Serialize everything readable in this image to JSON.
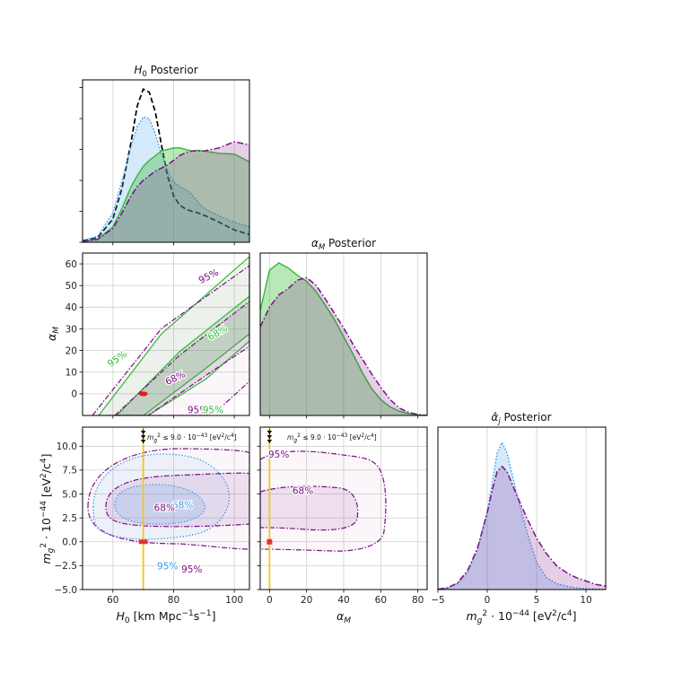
{
  "colors": {
    "purple": "#7b0f86",
    "green": "#33bb33",
    "blue": "#3a9ae8",
    "black": "#000000",
    "gold": "#f5c518",
    "red": "#e31a1c",
    "grid": "#cfcfcf"
  },
  "chart_data": [
    {
      "id": "h0-posterior",
      "type": "area",
      "title": "H0 Posterior",
      "title_parts": {
        "main": "H",
        "sub": "0",
        "tail": " Posterior"
      },
      "xlim": [
        50,
        105
      ],
      "x_ticks": [
        60,
        80,
        100
      ],
      "series": [
        {
          "style": "dashed-black-line",
          "x": [
            50,
            55,
            60,
            63,
            66,
            68,
            70,
            72,
            74,
            76,
            78,
            80,
            82,
            84,
            86,
            88,
            90,
            95,
            100,
            105
          ],
          "y": [
            0.1,
            0.3,
            1.5,
            3.5,
            6.5,
            8.8,
            9.9,
            9.7,
            8.4,
            6.3,
            4.3,
            3.0,
            2.4,
            2.15,
            2.0,
            1.9,
            1.75,
            1.3,
            0.8,
            0.5
          ]
        },
        {
          "style": "blue-dotted-filled",
          "x": [
            50,
            55,
            60,
            63,
            66,
            68,
            70,
            72,
            74,
            76,
            78,
            80,
            82,
            84,
            86,
            88,
            90,
            95,
            100,
            105
          ],
          "y": [
            0.1,
            0.4,
            1.9,
            4.0,
            6.2,
            7.5,
            8.1,
            8.0,
            7.0,
            5.7,
            4.6,
            3.9,
            3.6,
            3.4,
            3.1,
            2.6,
            2.2,
            1.7,
            1.3,
            1.0
          ]
        },
        {
          "style": "green-solid-filled",
          "x": [
            50,
            55,
            60,
            63,
            66,
            68,
            70,
            72,
            74,
            76,
            78,
            80,
            82,
            84,
            86,
            88,
            90,
            95,
            100,
            105
          ],
          "y": [
            0.05,
            0.2,
            1.0,
            2.2,
            3.6,
            4.3,
            4.9,
            5.3,
            5.6,
            5.9,
            6.0,
            6.1,
            6.1,
            6.0,
            5.9,
            5.95,
            5.9,
            5.75,
            5.7,
            5.2
          ]
        },
        {
          "style": "purple-dashdot-filled",
          "x": [
            50,
            55,
            60,
            63,
            66,
            68,
            70,
            72,
            74,
            76,
            78,
            80,
            82,
            84,
            86,
            88,
            90,
            95,
            100,
            105
          ],
          "y": [
            0.05,
            0.2,
            0.9,
            1.9,
            3.0,
            3.6,
            4.0,
            4.3,
            4.6,
            4.8,
            5.0,
            5.3,
            5.6,
            5.8,
            5.9,
            5.9,
            5.9,
            6.1,
            6.5,
            6.3
          ]
        }
      ]
    },
    {
      "id": "alpha-posterior",
      "type": "area",
      "title": "αM Posterior",
      "title_parts": {
        "main": "α",
        "sub": "M",
        "tail": " Posterior"
      },
      "xlim": [
        -5,
        85
      ],
      "x_ticks": [
        0,
        20,
        40,
        60,
        80
      ],
      "series": [
        {
          "style": "green-solid-filled",
          "x": [
            -5,
            0,
            5,
            10,
            15,
            20,
            25,
            30,
            35,
            40,
            45,
            50,
            55,
            60,
            65,
            70,
            75,
            80,
            85
          ],
          "y": [
            8.5,
            11.8,
            12.4,
            12.0,
            11.4,
            10.9,
            10.1,
            9.0,
            7.8,
            6.4,
            5.0,
            3.5,
            2.2,
            1.3,
            0.7,
            0.35,
            0.15,
            0.05,
            0.0
          ]
        },
        {
          "style": "purple-dashdot-filled",
          "x": [
            -5,
            0,
            5,
            10,
            15,
            20,
            25,
            30,
            35,
            40,
            45,
            50,
            55,
            60,
            65,
            70,
            75,
            80,
            85
          ],
          "y": [
            7.2,
            8.8,
            9.8,
            10.3,
            11.0,
            11.2,
            10.6,
            9.5,
            8.3,
            7.1,
            5.8,
            4.6,
            3.4,
            2.3,
            1.3,
            0.6,
            0.25,
            0.08,
            0.0
          ]
        }
      ]
    },
    {
      "id": "mg-posterior",
      "type": "area",
      "title": "α̂j Posterior",
      "title_parts": {
        "main": "α̂",
        "sub": "j",
        "tail": " Posterior"
      },
      "xlim": [
        -5,
        12
      ],
      "x_ticks": [
        -5,
        0,
        5,
        10
      ],
      "xlabel": "m_g^2 · 10^-44 [eV^2/c^4]",
      "series": [
        {
          "style": "blue-dotted-filled",
          "x": [
            -5,
            -4,
            -3,
            -2,
            -1,
            0,
            0.5,
            1,
            1.5,
            2,
            2.5,
            3,
            4,
            5,
            6,
            7,
            8,
            9,
            10,
            11,
            12
          ],
          "y": [
            0.02,
            0.1,
            0.35,
            1.0,
            2.3,
            4.6,
            6.2,
            8.0,
            8.6,
            8.0,
            6.8,
            5.6,
            3.4,
            1.6,
            0.7,
            0.35,
            0.2,
            0.1,
            0.05,
            0.03,
            0.02
          ]
        },
        {
          "style": "purple-dashdot-filled",
          "x": [
            -5,
            -4,
            -3,
            -2,
            -1,
            0,
            0.5,
            1,
            1.5,
            2,
            2.5,
            3,
            4,
            5,
            6,
            7,
            8,
            9,
            10,
            11,
            12
          ],
          "y": [
            0.02,
            0.1,
            0.4,
            1.1,
            2.4,
            4.5,
            5.8,
            6.9,
            7.2,
            6.9,
            6.2,
            5.5,
            4.2,
            3.0,
            2.1,
            1.4,
            1.0,
            0.7,
            0.5,
            0.3,
            0.2
          ]
        }
      ]
    },
    {
      "id": "alpha-vs-h0",
      "type": "scatter",
      "xlim": [
        50,
        105
      ],
      "ylim": [
        -10,
        65
      ],
      "x_ticks": [
        60,
        80,
        100
      ],
      "y_ticks": [
        0,
        10,
        20,
        30,
        40,
        50,
        60
      ],
      "ylabel": "αM",
      "contour_labels": [
        {
          "text": "95%",
          "x": 92,
          "y": 53,
          "color": "purple",
          "rotate": -27
        },
        {
          "text": "95%",
          "x": 62,
          "y": 15,
          "color": "green",
          "rotate": -35
        },
        {
          "text": "68%",
          "x": 95,
          "y": 27,
          "color": "green",
          "rotate": -30
        },
        {
          "text": "68%",
          "x": 81,
          "y": 6,
          "color": "purple",
          "rotate": -25
        },
        {
          "text": "95%",
          "x": 88,
          "y": -9,
          "color": "purple",
          "rotate": 0
        },
        {
          "text": "95%",
          "x": 93,
          "y": -9,
          "color": "green",
          "rotate": 0
        }
      ],
      "marker": {
        "x": 70,
        "y": 0,
        "color": "red"
      }
    },
    {
      "id": "mg-vs-h0",
      "type": "scatter",
      "xlim": [
        50,
        105
      ],
      "ylim": [
        -5,
        12
      ],
      "x_ticks": [
        60,
        80,
        100
      ],
      "y_ticks": [
        -5.0,
        -2.5,
        0.0,
        2.5,
        5.0,
        7.5,
        10.0
      ],
      "y_tick_labels": [
        "−5.0",
        "−2.5",
        "0.0",
        "2.5",
        "5.0",
        "7.5",
        "10.0"
      ],
      "xlabel": "H0 [km Mpc^-1 s^-1]",
      "ylabel": "m_g^2 · 10^-44 [eV^2/c^4]",
      "vline": 70,
      "annotation": "m_g^2 ≤ 9.0 · 10^-43 [eV^2/c^4]",
      "contour_labels": [
        {
          "text": "68%",
          "x": 83,
          "y": 3.5,
          "color": "blue",
          "rotate": 0
        },
        {
          "text": "68%",
          "x": 77,
          "y": 3.2,
          "color": "purple",
          "rotate": 0
        },
        {
          "text": "95%",
          "x": 78,
          "y": -2.9,
          "color": "blue",
          "rotate": 0
        },
        {
          "text": "95%",
          "x": 86,
          "y": -3.2,
          "color": "purple",
          "rotate": 0
        }
      ],
      "marker": {
        "x": 70,
        "y": 0,
        "color": "red"
      }
    },
    {
      "id": "mg-vs-alpha",
      "type": "scatter",
      "xlim": [
        -5,
        85
      ],
      "ylim": [
        -5,
        12
      ],
      "x_ticks": [
        0,
        20,
        40,
        60,
        80
      ],
      "xlabel": "αM",
      "vline": 0,
      "annotation": "m_g^2 ≤ 9.0 · 10^-43 [eV^2/c^4]",
      "contour_labels": [
        {
          "text": "95%",
          "x": 5,
          "y": 8.8,
          "color": "purple",
          "rotate": 0
        },
        {
          "text": "68%",
          "x": 18,
          "y": 5.0,
          "color": "purple",
          "rotate": 0
        }
      ],
      "marker": {
        "x": 0,
        "y": 0,
        "color": "red"
      }
    }
  ]
}
